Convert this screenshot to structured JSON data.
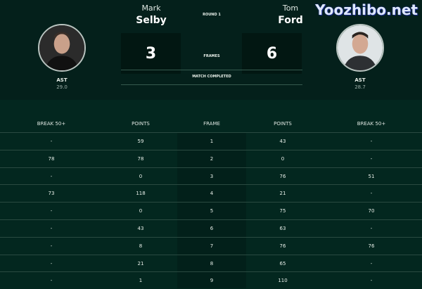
{
  "match": {
    "round": "ROUND 1",
    "frames_label": "FRAMES",
    "status": "MATCH COMPLETED"
  },
  "player1": {
    "first": "Mark",
    "last": "Selby",
    "score": "3",
    "ast_label": "AST",
    "ast": "29.0"
  },
  "player2": {
    "first": "Tom",
    "last": "Ford",
    "score": "6",
    "ast_label": "AST",
    "ast": "28.7"
  },
  "table": {
    "headers": [
      "BREAK 50+",
      "POINTS",
      "FRAME",
      "POINTS",
      "BREAK 50+"
    ],
    "rows": [
      [
        "-",
        "59",
        "1",
        "43",
        "-"
      ],
      [
        "78",
        "78",
        "2",
        "0",
        "-"
      ],
      [
        "-",
        "0",
        "3",
        "76",
        "51"
      ],
      [
        "73",
        "118",
        "4",
        "21",
        "-"
      ],
      [
        "-",
        "0",
        "5",
        "75",
        "70"
      ],
      [
        "-",
        "43",
        "6",
        "63",
        "-"
      ],
      [
        "-",
        "8",
        "7",
        "76",
        "76"
      ],
      [
        "-",
        "21",
        "8",
        "65",
        "-"
      ],
      [
        "-",
        "1",
        "9",
        "110",
        "-"
      ]
    ]
  },
  "watermark": "Yoozhibo.net",
  "colors": {
    "header_bg": "#04201b",
    "table_bg": "#03271f",
    "frame_col_bg": "#02201a"
  }
}
